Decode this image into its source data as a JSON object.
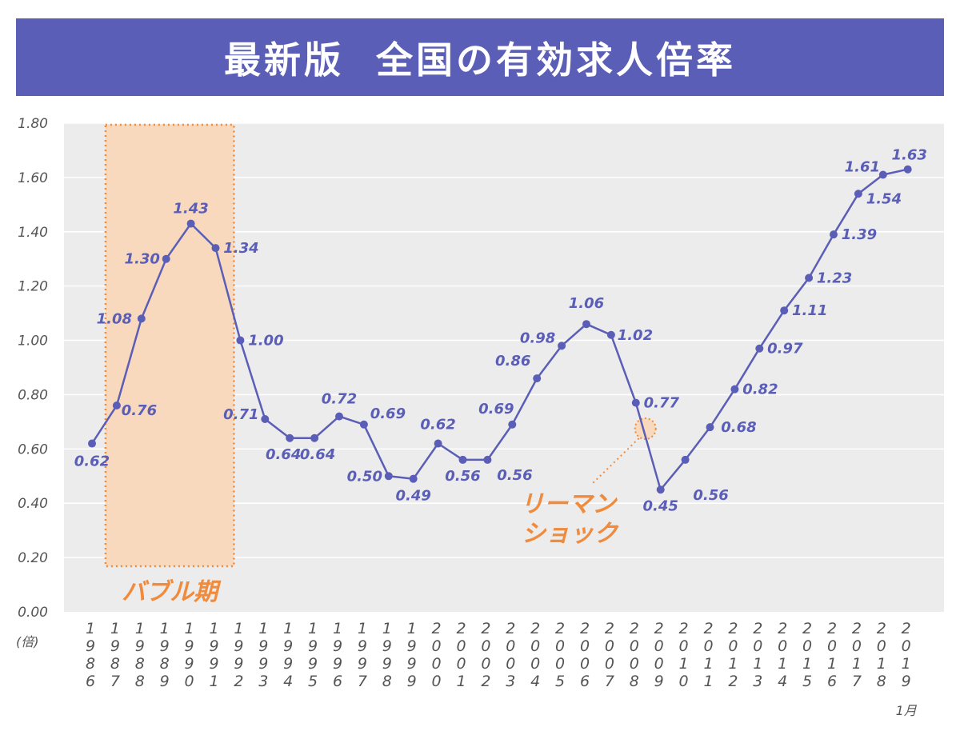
{
  "title": "最新版  全国の有効求人倍率",
  "chart_data": {
    "type": "line",
    "title": "最新版  全国の有効求人倍率",
    "ylabel": "(倍)",
    "x_note": "1月",
    "ylim": [
      0,
      1.8
    ],
    "yticks": [
      "0.00",
      "0.20",
      "0.40",
      "0.60",
      "0.80",
      "1.00",
      "1.20",
      "1.40",
      "1.60",
      "1.80"
    ],
    "grid": true,
    "categories": [
      "1986",
      "1987",
      "1988",
      "1989",
      "1990",
      "1991",
      "1992",
      "1993",
      "1994",
      "1995",
      "1996",
      "1997",
      "1998",
      "1999",
      "2000",
      "2001",
      "2002",
      "2003",
      "2004",
      "2005",
      "2006",
      "2007",
      "2008",
      "2009",
      "2010",
      "2011",
      "2012",
      "2013",
      "2014",
      "2015",
      "2016",
      "2017",
      "2018",
      "2019"
    ],
    "values": [
      0.62,
      0.76,
      1.08,
      1.3,
      1.43,
      1.34,
      1.0,
      0.71,
      0.64,
      0.64,
      0.72,
      0.69,
      0.5,
      0.49,
      0.62,
      0.56,
      0.56,
      0.69,
      0.86,
      0.98,
      1.06,
      1.02,
      0.77,
      0.45,
      0.56,
      0.68,
      0.82,
      0.97,
      1.11,
      1.23,
      1.39,
      1.54,
      1.61,
      1.63
    ],
    "data_labels": [
      "0.62",
      "0.76",
      "1.08",
      "1.30",
      "1.43",
      "1.34",
      "1.00",
      "0.71",
      "0.64",
      "0.64",
      "0.72",
      "0.69",
      "0.50",
      "0.49",
      "0.62",
      "0.56",
      "0.56",
      "0.69",
      "0.86",
      "0.98",
      "1.06",
      "1.02",
      "0.77",
      "0.45",
      "0.56",
      "0.68",
      "0.82",
      "0.97",
      "1.11",
      "1.23",
      "1.39",
      "1.54",
      "1.61",
      "1.63"
    ],
    "annotations": [
      {
        "label": "バブル期",
        "type": "shaded-period",
        "from": "1987",
        "to": "1992"
      },
      {
        "label_lines": [
          "リーマン",
          "ショック"
        ],
        "type": "event-marker",
        "at": "2009"
      }
    ],
    "colors": {
      "line": "#5b5eb6",
      "plot_bg": "#ececec",
      "grid": "#ffffff",
      "title_bg": "#5b5eb6",
      "bubble_fill": "#f8d9bd",
      "annotation": "#f08a3c"
    }
  }
}
